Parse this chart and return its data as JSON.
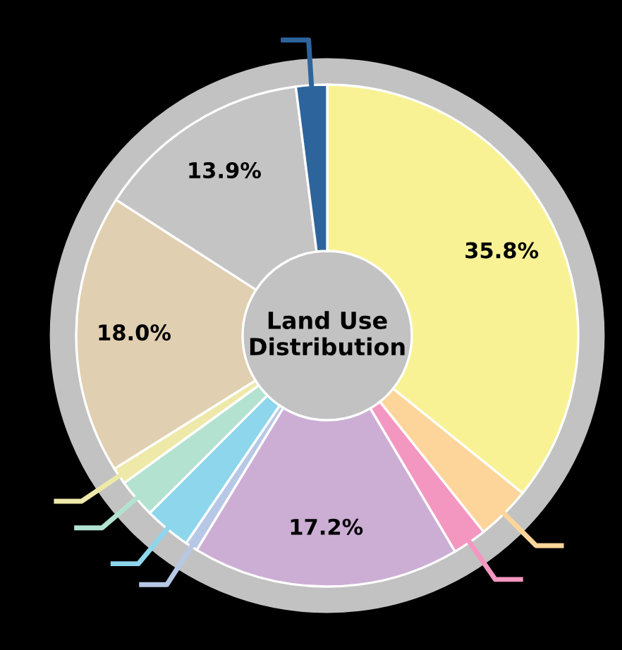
{
  "chart_data": {
    "type": "donut",
    "title": "Land Use Distribution",
    "categories": [
      null,
      null,
      null,
      null,
      null,
      null,
      null,
      null,
      null,
      null,
      null
    ],
    "values": [
      35.8,
      3.5,
      2.2,
      17.2,
      0.8,
      3.0,
      2.5,
      1.1,
      18.0,
      13.9,
      2.0
    ],
    "colors": [
      "#f8f294",
      "#fdd59a",
      "#f497c0",
      "#ccaed5",
      "#b7c8e6",
      "#8dd6ec",
      "#b3e2d1",
      "#eee9a9",
      "#e0cfb0",
      "#c4c4c4",
      "#2e649c"
    ],
    "value_labels": [
      "35.8%",
      null,
      null,
      "17.2%",
      null,
      null,
      null,
      null,
      "18.0%",
      "13.9%",
      null
    ]
  }
}
